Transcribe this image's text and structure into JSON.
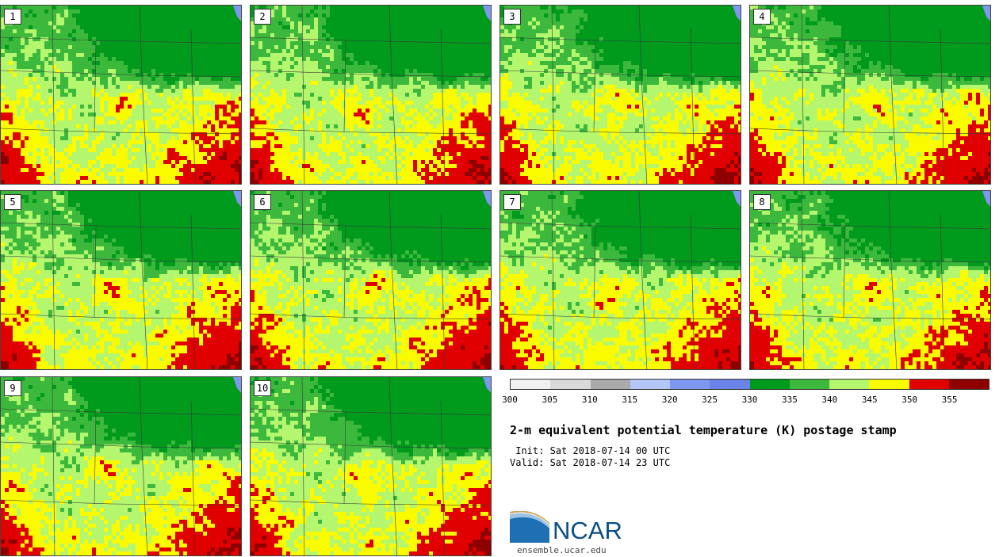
{
  "panels": [
    {
      "member": "1"
    },
    {
      "member": "2"
    },
    {
      "member": "3"
    },
    {
      "member": "4"
    },
    {
      "member": "5"
    },
    {
      "member": "6"
    },
    {
      "member": "7"
    },
    {
      "member": "8"
    },
    {
      "member": "9"
    },
    {
      "member": "10"
    }
  ],
  "colorbar": {
    "tick_labels": [
      "300",
      "305",
      "310",
      "315",
      "320",
      "325",
      "330",
      "335",
      "340",
      "345",
      "350",
      "355"
    ],
    "colors": [
      "#f0f0f0",
      "#d9d9d9",
      "#aaaaaa",
      "#b4c6f7",
      "#7e97ef",
      "#6a84e6",
      "#009a1c",
      "#3cb83c",
      "#b4f66e",
      "#fbfb00",
      "#e00000",
      "#8e0000"
    ]
  },
  "map_colors": {
    "green_dark": "#009a1c",
    "green": "#3cb83c",
    "light_green": "#b4f66e",
    "yellow": "#fbfb00",
    "red": "#e00000",
    "dark_red": "#8e0000",
    "water": "#7e97ef"
  },
  "title": "2-m equivalent potential temperature (K) postage stamp",
  "init": " Init: Sat 2018-07-14 00 UTC",
  "valid": "Valid: Sat 2018-07-14 23 UTC",
  "logo": {
    "name": "NCAR",
    "url": "ensemble.ucar.edu"
  }
}
